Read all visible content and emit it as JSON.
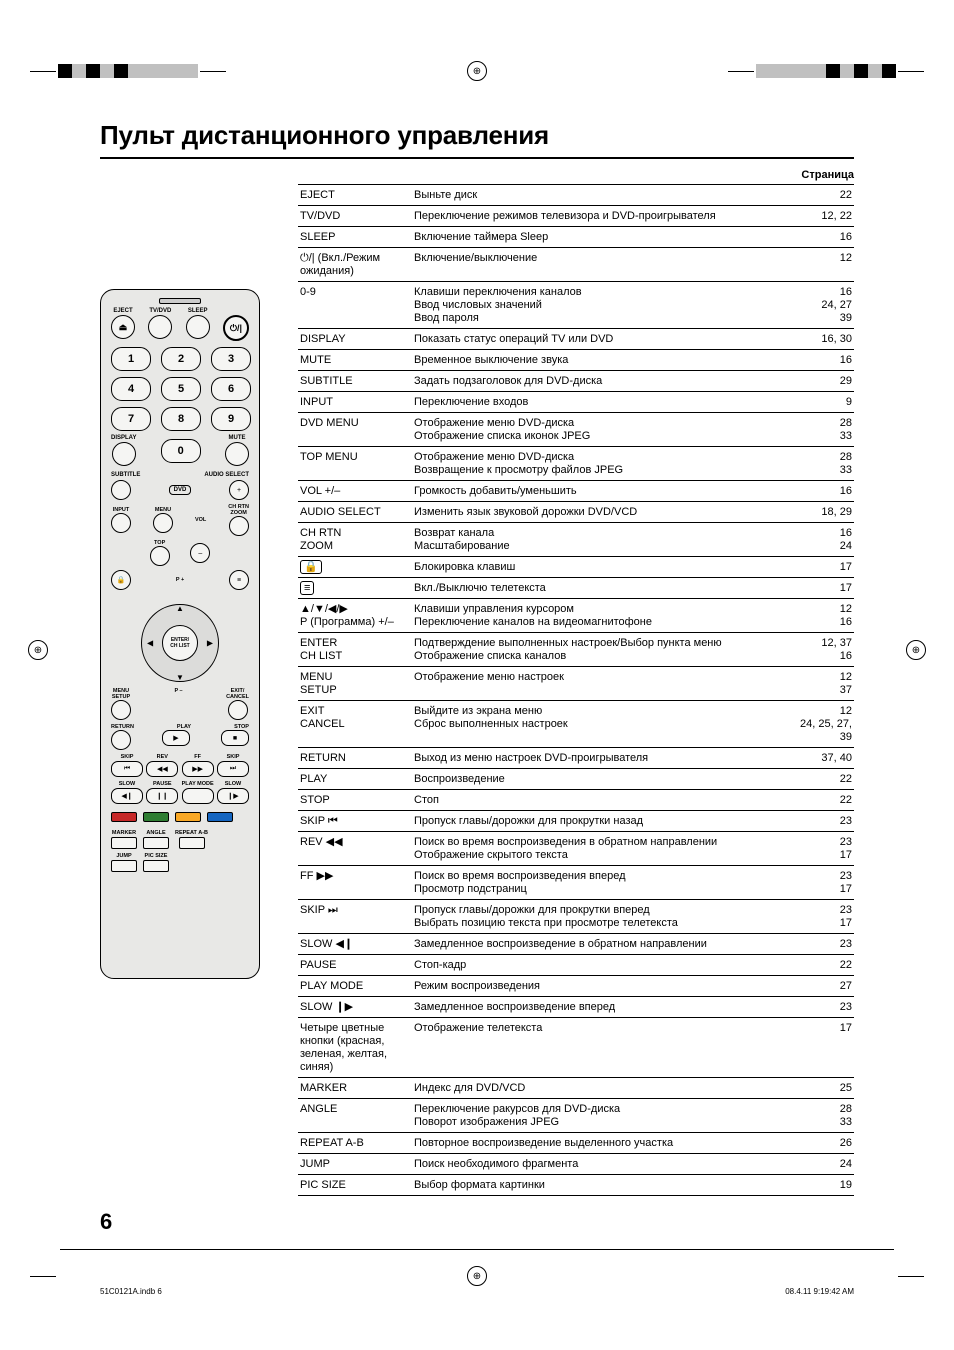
{
  "title": "Пульт дистанционного управления",
  "table_header": "Страница",
  "page_number": "6",
  "footer_left": "51C0121A.indb   6",
  "footer_right": "08.4.11   9:19:42 AM",
  "crop_bar_colors": [
    "#000000",
    "#c0c0c0",
    "#000000",
    "#c0c0c0",
    "#000000",
    "#c0c0c0",
    "#c0c0c0",
    "#c0c0c0",
    "#c0c0c0",
    "#c0c0c0"
  ],
  "crop_bar_colors_r": [
    "#c0c0c0",
    "#c0c0c0",
    "#c0c0c0",
    "#c0c0c0",
    "#c0c0c0",
    "#000000",
    "#c0c0c0",
    "#000000",
    "#c0c0c0",
    "#000000"
  ],
  "remote": {
    "row1": [
      "EJECT",
      "TV/DVD",
      "SLEEP",
      ""
    ],
    "eject_symbol": "⏏",
    "power_symbol": "⏻/|",
    "numpad": [
      "1",
      "2",
      "3",
      "4",
      "5",
      "6",
      "7",
      "8",
      "9"
    ],
    "display": "DISPLAY",
    "mute": "MUTE",
    "zero": "0",
    "subtitle": "SUBTITLE",
    "audio_select": "AUDIO SELECT",
    "dvd": "DVD",
    "plus": "+",
    "input": "INPUT",
    "menu": "MENU",
    "vol": "VOL",
    "ch_rtn": "CH RTN\nZOOM",
    "top": "TOP",
    "minus": "–",
    "p_plus": "P +",
    "enter": "ENTER/\nCH LIST",
    "menu_setup": "MENU\nSETUP",
    "exit_cancel": "EXIT/\nCANCEL",
    "p_minus": "P –",
    "return": "RETURN",
    "play": "PLAY",
    "stop": "STOP",
    "skip": "SKIP",
    "rev": "REV",
    "ff": "FF",
    "slow": "SLOW",
    "pause": "PAUSE",
    "play_mode": "PLAY MODE",
    "marker": "MARKER",
    "angle": "ANGLE",
    "repeat_ab": "REPEAT A-B",
    "jump": "JUMP",
    "pic_size": "PIC SIZE",
    "color_btn_colors": [
      "#c62828",
      "#2e7d32",
      "#f9a825",
      "#1565c0"
    ]
  },
  "rows": [
    {
      "key": "EJECT",
      "desc": [
        "Выньте диск"
      ],
      "pages": [
        "22"
      ]
    },
    {
      "key": "TV/DVD",
      "desc": [
        "Переключение режимов телевизора и DVD-проигрывателя"
      ],
      "pages": [
        "12, 22"
      ]
    },
    {
      "key": "SLEEP",
      "desc": [
        "Включение таймера Sleep"
      ],
      "pages": [
        "16"
      ]
    },
    {
      "key": "⏻/| (Вкл./Режим ожидания)",
      "desc": [
        "Включение/выключение"
      ],
      "pages": [
        "12"
      ]
    },
    {
      "key": "0-9",
      "desc": [
        "Клавиши переключения каналов",
        "Ввод числовых значений",
        "Ввод пароля"
      ],
      "pages": [
        "16",
        "24, 27",
        "39"
      ]
    },
    {
      "key": "DISPLAY",
      "desc": [
        "Показать статус операций TV или DVD"
      ],
      "pages": [
        "16, 30"
      ]
    },
    {
      "key": "MUTE",
      "desc": [
        "Временное выключение звука"
      ],
      "pages": [
        "16"
      ]
    },
    {
      "key": "SUBTITLE",
      "desc": [
        "Задать подзаголовок для DVD-диска"
      ],
      "pages": [
        "29"
      ]
    },
    {
      "key": "INPUT",
      "desc": [
        "Переключение входов"
      ],
      "pages": [
        "9"
      ]
    },
    {
      "key": "DVD MENU",
      "desc": [
        "Отображение меню DVD-диска",
        "Отображение списка иконок JPEG"
      ],
      "pages": [
        "28",
        "33"
      ]
    },
    {
      "key": "TOP MENU",
      "desc": [
        "Отображение меню DVD-диска",
        "Возвращение к просмотру файлов JPEG"
      ],
      "pages": [
        "28",
        "33"
      ]
    },
    {
      "key": "VOL +/–",
      "desc": [
        "Громкость добавить/уменьшить"
      ],
      "pages": [
        "16"
      ]
    },
    {
      "key": "AUDIO SELECT",
      "desc": [
        "Изменить язык звуковой дорожки DVD/VCD"
      ],
      "pages": [
        "18, 29"
      ]
    },
    {
      "key": "CH RTN\nZOOM",
      "desc": [
        "Возврат канала",
        "Масштабирование"
      ],
      "pages": [
        "16",
        "24"
      ]
    },
    {
      "key": "🔒 (icon)",
      "key_display": "",
      "icon": "lock",
      "desc": [
        "Блокировка клавиш"
      ],
      "pages": [
        "17"
      ]
    },
    {
      "key": "📄 (icon)",
      "key_display": "",
      "icon": "teletext",
      "desc": [
        "Вкл./Выключю телетекста"
      ],
      "pages": [
        "17"
      ]
    },
    {
      "key": "▲/▼/◀/▶\nP (Программа) +/–",
      "desc": [
        "Клавиши управления курсором",
        "Переключение каналов на видеомагнитофоне"
      ],
      "pages": [
        "12",
        "16"
      ]
    },
    {
      "key": "ENTER\nCH LIST",
      "desc": [
        "Подтверждение выполненных настроек/Выбор пункта меню",
        "Отображение списка каналов"
      ],
      "pages": [
        "12, 37",
        "16"
      ]
    },
    {
      "key": "MENU\nSETUP",
      "desc": [
        "Отображение меню настроек"
      ],
      "pages": [
        "12",
        "37"
      ]
    },
    {
      "key": "EXIT\nCANCEL",
      "desc": [
        "Выйдите из экрана меню",
        "Сброс выполненных настроек"
      ],
      "pages": [
        "12",
        "24, 25, 27, 39"
      ]
    },
    {
      "key": "RETURN",
      "desc": [
        "Выход из меню настроек DVD-проигрывателя"
      ],
      "pages": [
        "37, 40"
      ]
    },
    {
      "key": "PLAY",
      "desc": [
        "Воспроизведение"
      ],
      "pages": [
        "22"
      ]
    },
    {
      "key": "STOP",
      "desc": [
        "Стоп"
      ],
      "pages": [
        "22"
      ]
    },
    {
      "key": "SKIP ⏮",
      "desc": [
        "Пропуск главы/дорожки для прокрутки назад"
      ],
      "pages": [
        "23"
      ]
    },
    {
      "key": "REV ◀◀\n(icon)",
      "key_plain": "REV ◀◀",
      "desc": [
        "Поиск во время воспроизведения в обратном направлении",
        "Отображение скрытого текста"
      ],
      "pages": [
        "23",
        "17"
      ]
    },
    {
      "key": "FF ▶▶\n(icons)",
      "key_plain": "FF ▶▶",
      "desc": [
        "Поиск во время воспроизведения вперед",
        "Просмотр подстраниц"
      ],
      "pages": [
        "23",
        "17"
      ]
    },
    {
      "key": "SKIP ⏭\n(icon)",
      "key_plain": "SKIP ⏭",
      "desc": [
        "Пропуск главы/дорожки для прокрутки вперед",
        "Выбрать позицию текста при просмотре телетекста"
      ],
      "pages": [
        "23",
        "17"
      ]
    },
    {
      "key": "SLOW ◀❙",
      "desc": [
        "Замедленное воспроизведение в обратном направлении"
      ],
      "pages": [
        "23"
      ]
    },
    {
      "key": "PAUSE",
      "desc": [
        "Стоп-кадр"
      ],
      "pages": [
        "22"
      ]
    },
    {
      "key": "PLAY MODE",
      "desc": [
        "Режим воспроизведения"
      ],
      "pages": [
        "27"
      ]
    },
    {
      "key": "SLOW ❙▶",
      "desc": [
        "Замедленное воспроизведение вперед"
      ],
      "pages": [
        "23"
      ]
    },
    {
      "key": "Четыре цветные кнопки (красная, зеленая, желтая, синяя)",
      "desc": [
        "Отображение телетекста"
      ],
      "pages": [
        "17"
      ]
    },
    {
      "key": "MARKER",
      "desc": [
        "Индекс для DVD/VCD"
      ],
      "pages": [
        "25"
      ]
    },
    {
      "key": "ANGLE",
      "desc": [
        "Переключение ракурсов для DVD-диска",
        "Поворот изображения JPEG"
      ],
      "pages": [
        "28",
        "33"
      ]
    },
    {
      "key": "REPEAT A-B",
      "desc": [
        "Повторное воспроизведение выделенного участка"
      ],
      "pages": [
        "26"
      ]
    },
    {
      "key": "JUMP",
      "desc": [
        "Поиск необходимого фрагмента"
      ],
      "pages": [
        "24"
      ]
    },
    {
      "key": "PIC SIZE",
      "desc": [
        "Выбор формата картинки"
      ],
      "pages": [
        "19"
      ]
    }
  ]
}
